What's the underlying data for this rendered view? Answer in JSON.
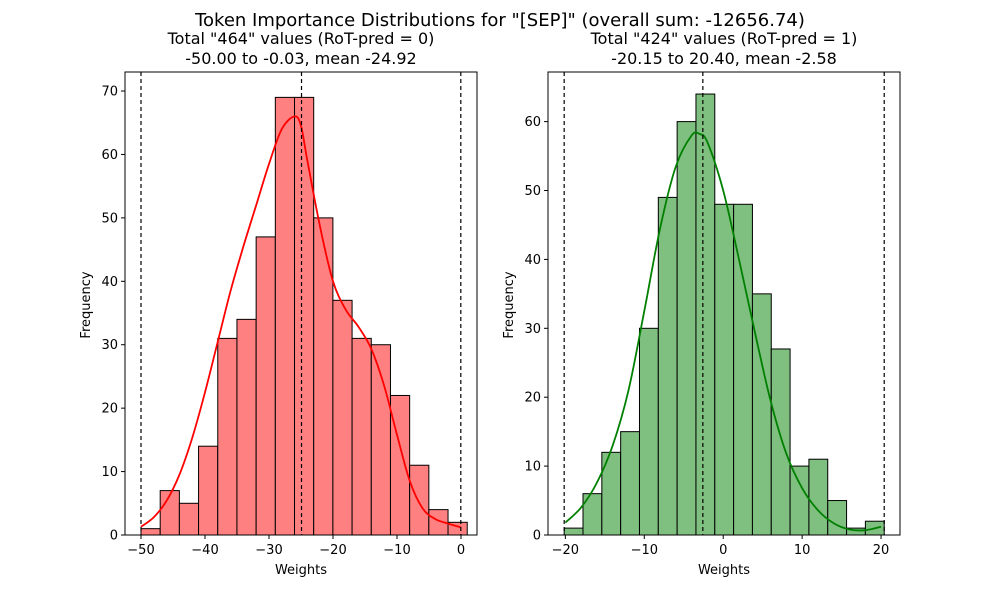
{
  "figure": {
    "suptitle": "Token Importance Distributions for \"[SEP]\" (overall  sum: -12656.74)"
  },
  "chart_data": [
    {
      "type": "histogram",
      "title_line1": "Total \"464\" values (RoT-pred = 0)",
      "title_line2": "-50.00 to -0.03, mean -24.92",
      "xlabel": "Weights",
      "ylabel": "Frequency",
      "xlim": [
        -52.5,
        2.5
      ],
      "ylim": [
        0,
        73
      ],
      "xticks": [
        -50,
        -40,
        -30,
        -20,
        -10,
        0
      ],
      "yticks": [
        0,
        10,
        20,
        30,
        40,
        50,
        60,
        70
      ],
      "bin_start": -50.0,
      "bin_width": 2.9984,
      "counts": [
        1,
        7,
        5,
        14,
        31,
        34,
        47,
        69,
        69,
        50,
        37,
        31,
        30,
        22,
        11,
        4,
        2
      ],
      "vlines": [
        -50.0,
        -24.92,
        -0.03
      ],
      "kde": [
        [
          -50,
          1.3
        ],
        [
          -48,
          2.8
        ],
        [
          -46,
          5.4
        ],
        [
          -44,
          9.5
        ],
        [
          -42,
          15.3
        ],
        [
          -40,
          22.5
        ],
        [
          -38,
          30.5
        ],
        [
          -36,
          38.5
        ],
        [
          -34,
          45.5
        ],
        [
          -32,
          52
        ],
        [
          -30,
          58.5
        ],
        [
          -28,
          64
        ],
        [
          -26,
          66
        ],
        [
          -25,
          64.5
        ],
        [
          -24,
          59
        ],
        [
          -22,
          48.5
        ],
        [
          -20,
          40
        ],
        [
          -18,
          35.5
        ],
        [
          -16,
          32.8
        ],
        [
          -14,
          29.3
        ],
        [
          -12,
          23.5
        ],
        [
          -10,
          15.8
        ],
        [
          -8,
          8.5
        ],
        [
          -6,
          4.2
        ],
        [
          -4,
          2.5
        ],
        [
          -2,
          1.8
        ],
        [
          0,
          1.2
        ]
      ],
      "colors": {
        "bar_fill": "#ff8080",
        "bar_edge": "#000000",
        "kde": "#ff0000"
      }
    },
    {
      "type": "histogram",
      "title_line1": "Total \"424\" values (RoT-pred = 1)",
      "title_line2": "-20.15 to 20.40, mean -2.58",
      "xlabel": "Weights",
      "ylabel": "Frequency",
      "xlim": [
        -22.2,
        22.4
      ],
      "ylim": [
        0,
        67.2
      ],
      "xticks": [
        -20,
        -10,
        0,
        10,
        20
      ],
      "yticks": [
        0,
        10,
        20,
        30,
        40,
        50,
        60
      ],
      "bin_start": -20.15,
      "bin_width": 2.3853,
      "counts": [
        1,
        6,
        12,
        15,
        30,
        49,
        60,
        64,
        48,
        48,
        35,
        27,
        10,
        11,
        5,
        1,
        2
      ],
      "vlines": [
        -20.15,
        -2.58,
        20.4
      ],
      "kde": [
        [
          -20,
          1.8
        ],
        [
          -18,
          4.0
        ],
        [
          -16,
          7.6
        ],
        [
          -14,
          13.0
        ],
        [
          -12,
          21.0
        ],
        [
          -10,
          32.5
        ],
        [
          -8,
          44.5
        ],
        [
          -6,
          53.5
        ],
        [
          -4,
          58.0
        ],
        [
          -3,
          58.2
        ],
        [
          -2,
          57.0
        ],
        [
          0,
          50.0
        ],
        [
          2,
          40.0
        ],
        [
          4,
          29.5
        ],
        [
          6,
          19.5
        ],
        [
          8,
          11.8
        ],
        [
          10,
          6.8
        ],
        [
          12,
          3.6
        ],
        [
          14,
          1.7
        ],
        [
          16,
          0.8
        ],
        [
          18,
          0.7
        ],
        [
          20,
          1.2
        ]
      ],
      "colors": {
        "bar_fill": "#7fbf7f",
        "bar_edge": "#000000",
        "kde": "#008000"
      }
    }
  ]
}
